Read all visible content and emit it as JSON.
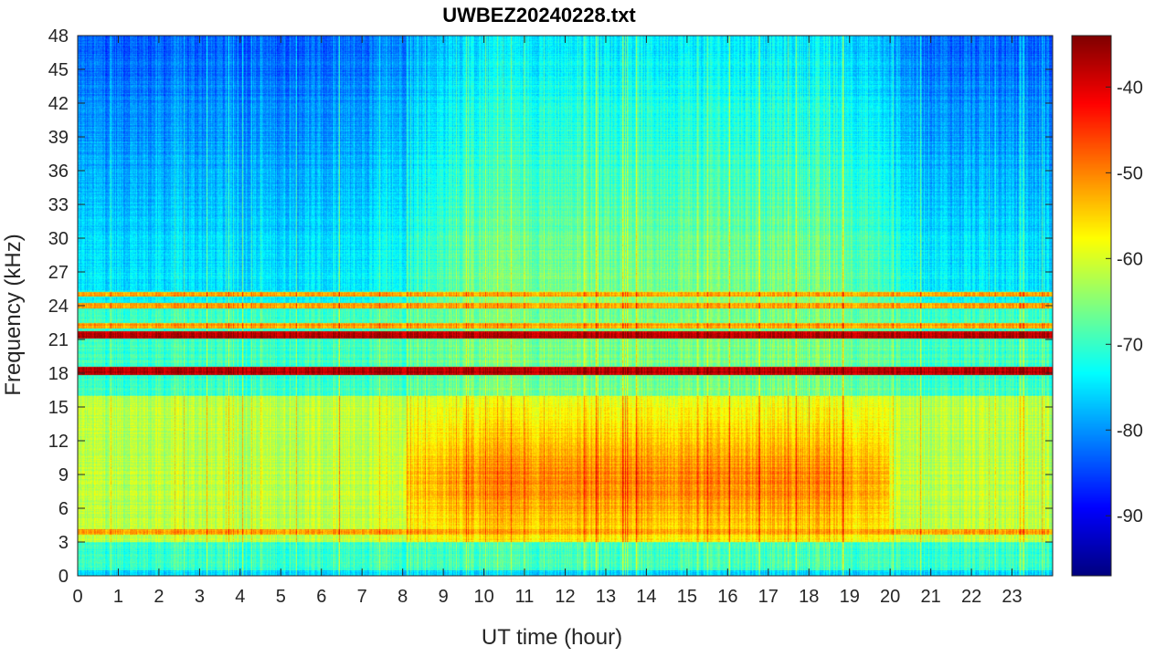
{
  "chart_data": {
    "type": "heatmap",
    "title": "UWBEZ20240228.txt",
    "xlabel": "UT time (hour)",
    "ylabel": "Frequency (kHz)",
    "xlim": [
      0,
      24
    ],
    "ylim": [
      0,
      48
    ],
    "x_ticks": [
      0,
      1,
      2,
      3,
      4,
      5,
      6,
      7,
      8,
      9,
      10,
      11,
      12,
      13,
      14,
      15,
      16,
      17,
      18,
      19,
      20,
      21,
      22,
      23
    ],
    "y_ticks": [
      0,
      3,
      6,
      9,
      12,
      15,
      18,
      21,
      24,
      27,
      30,
      33,
      36,
      39,
      42,
      45,
      48
    ],
    "colorbar": {
      "colormap": "jet",
      "limits": [
        -97,
        -34
      ],
      "ticks": [
        -40,
        -50,
        -60,
        -70,
        -80,
        -90
      ]
    },
    "features": {
      "strong_lines_khz": [
        18.2,
        21.4
      ],
      "moderate_lines_khz": [
        3.9,
        22.2,
        24.0,
        25.0
      ],
      "intense_band": {
        "freq_khz": [
          3,
          16
        ],
        "time_hours": [
          8,
          20
        ]
      }
    }
  }
}
